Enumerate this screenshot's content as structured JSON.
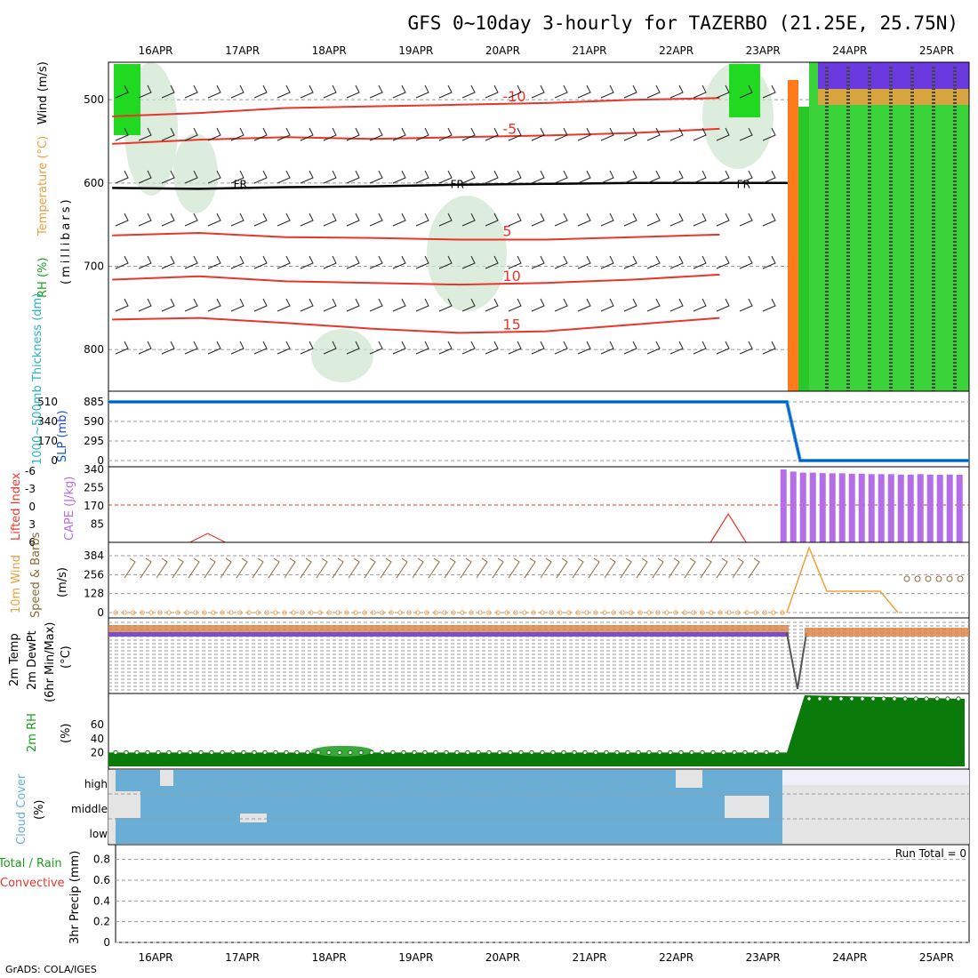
{
  "title": "GFS 0~10day 3-hourly for TAZERBO (21.25E, 25.75N)",
  "credit": "GrADS: COLA/IGES",
  "time_axis": [
    "16APR",
    "17APR",
    "18APR",
    "19APR",
    "20APR",
    "21APR",
    "22APR",
    "23APR",
    "24APR",
    "25APR"
  ],
  "colors": {
    "temperature": "#e8362a",
    "freezing": "#000000",
    "rh_fill": "#2fbf2f",
    "thickness": "#2ab0c8",
    "slp": "#1a4fd8",
    "cape": "#b46ee8",
    "lifted_index": "#e8362a",
    "wind10m": "#f2a13a",
    "barb10m": "#8a6a3a",
    "rh2m": "#0a7a0a",
    "cloud": "#6aaed6",
    "cloud_bg": "#e4e4e4"
  },
  "panels": {
    "upper_air": {
      "ylabel_rh": "RH (%)",
      "ylabel_temp": "Temperature (°C)",
      "ylabel_wind": "Wind (m/s)",
      "ylabel_units": "(millibars)",
      "freezing_label": "FR",
      "contour_labels": [
        "-10",
        "-5",
        "5",
        "10",
        "15",
        "10",
        "-5"
      ]
    },
    "slp": {
      "ylabel_thickness": "1000~500mb Thickness (dm)",
      "ylabel_slp": "SLP (mb)"
    },
    "stability": {
      "ylabel_li": "Lifted Index",
      "ylabel_cape": "CAPE (J/kg)"
    },
    "wind10m": {
      "ylabel_a": "10m Wind",
      "ylabel_b": "Speed & Barbs",
      "ylabel_units": "(m/s)"
    },
    "temp2m": {
      "ylabel_a": "2m Temp",
      "ylabel_b": "2m DewPt",
      "ylabel_c": "(6hr Min/Max)",
      "ylabel_units": "(°C)"
    },
    "rh2m": {
      "ylabel": "2m RH",
      "ylabel_units": "(%)"
    },
    "cloud": {
      "ylabel": "Cloud Cover",
      "ylabel_units": "(%)",
      "levels": [
        "high",
        "middle",
        "low"
      ]
    },
    "precip": {
      "ylabel_a": "Total / Rain",
      "ylabel_b": "Convective",
      "ylabel_c": "3hr Precip (mm)",
      "run_total": "Run Total = 0"
    }
  },
  "chart_data": [
    {
      "type": "line",
      "name": "upper-air cross section",
      "y_ticks": [
        500,
        600,
        700,
        800
      ],
      "ylim": [
        850,
        455
      ],
      "freezing_level_mb_daily": [
        606,
        607,
        605,
        604,
        602,
        601,
        600,
        600,
        600
      ],
      "isotherms": [
        {
          "label": "-10",
          "pressure_mb_daily": [
            520,
            516,
            510,
            508,
            506,
            504,
            500,
            498
          ]
        },
        {
          "label": "-5",
          "pressure_mb_daily": [
            553,
            548,
            545,
            547,
            545,
            543,
            540,
            535
          ]
        },
        {
          "label": "5",
          "pressure_mb_daily": [
            663,
            660,
            665,
            666,
            668,
            668,
            665,
            662
          ]
        },
        {
          "label": "10",
          "pressure_mb_daily": [
            716,
            712,
            718,
            720,
            722,
            720,
            716,
            710
          ]
        },
        {
          "label": "15",
          "pressure_mb_daily": [
            764,
            762,
            768,
            775,
            780,
            778,
            770,
            762
          ]
        }
      ]
    },
    {
      "type": "line",
      "name": "SLP and thickness",
      "slp_ticks": [
        885,
        590,
        295,
        0
      ],
      "thickness_ticks": [
        510,
        340,
        170,
        0
      ],
      "slp_mb": [
        885,
        885,
        885,
        885,
        885,
        885,
        885,
        885,
        0,
        0
      ],
      "thickness_dm": [
        510,
        510,
        510,
        510,
        510,
        510,
        510,
        510,
        0,
        0
      ]
    },
    {
      "type": "bar",
      "name": "CAPE and Lifted Index",
      "cape_ticks": [
        340,
        255,
        170,
        85
      ],
      "li_ticks": [
        -6,
        -3,
        0,
        3,
        6
      ],
      "cape_bars_j_per_kg": [
        340,
        330,
        325,
        325,
        323,
        322,
        322,
        320,
        320,
        318,
        318,
        318,
        316,
        316,
        318,
        316,
        315,
        316,
        315
      ],
      "cape_bars_start_day": 7.2,
      "li_peaks": [
        {
          "day": 0.6,
          "value": 6
        },
        {
          "day": 6.6,
          "value": 3
        }
      ]
    },
    {
      "type": "line",
      "name": "10m wind speed",
      "y_ticks": [
        384,
        256,
        128,
        0
      ],
      "wind_speed": [
        0,
        0,
        0,
        0,
        0,
        0,
        0,
        0,
        410,
        150,
        150,
        200,
        200,
        200
      ]
    },
    {
      "type": "line",
      "name": "2m temperature and dewpoint",
      "note_ticks": "dense unreadable tick labels",
      "dip_day": 7.4
    },
    {
      "type": "area",
      "name": "2m RH",
      "y_ticks": [
        60,
        40,
        20
      ],
      "rh_percent_daily": [
        20,
        20,
        28,
        21,
        20,
        20,
        20,
        22,
        100,
        100
      ]
    },
    {
      "type": "area",
      "name": "cloud cover",
      "levels": [
        "high",
        "middle",
        "low"
      ],
      "cloud_until_day": 7.2
    },
    {
      "type": "line",
      "name": "3hr precipitation",
      "y_ticks": [
        0.8,
        0.6,
        0.4,
        0.2,
        0
      ],
      "ylim": [
        0,
        0.9
      ],
      "precip_mm": [
        0,
        0,
        0,
        0,
        0,
        0,
        0,
        0,
        0,
        0
      ]
    }
  ]
}
